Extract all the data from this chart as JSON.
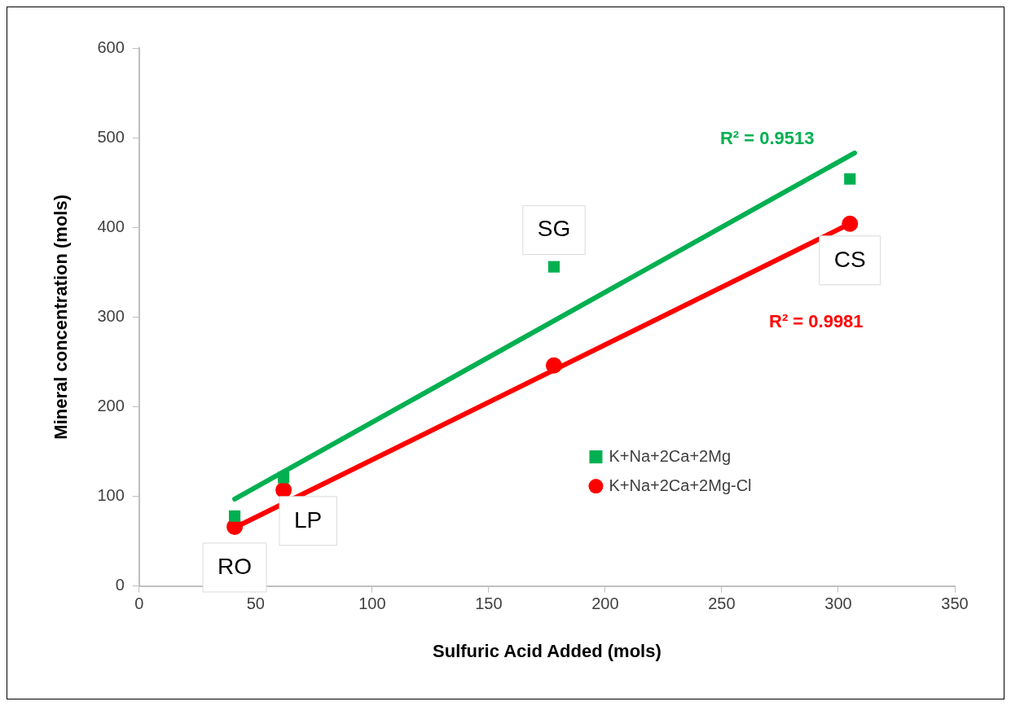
{
  "chart_data": {
    "type": "scatter",
    "xlabel": "Sulfuric Acid Added (mols)",
    "ylabel": "Mineral concentration (mols)",
    "xlim": [
      0,
      350
    ],
    "xticks": [
      0,
      50,
      100,
      150,
      200,
      250,
      300,
      350
    ],
    "ylim": [
      0,
      600
    ],
    "yticks": [
      0,
      100,
      200,
      300,
      400,
      500,
      600
    ],
    "grid": false,
    "legend": "bottom right",
    "series": [
      {
        "name": "K+Na+2Ca+2Mg",
        "type": "scatter",
        "marker": "square",
        "color": "#00b050",
        "x": [
          41,
          62,
          178,
          305
        ],
        "values": [
          78,
          121,
          356,
          454
        ]
      },
      {
        "name": "K+Na+2Ca+2Mg-Cl",
        "type": "scatter",
        "marker": "circle",
        "color": "#ff0000",
        "x": [
          41,
          62,
          178,
          305
        ],
        "values": [
          66,
          107,
          246,
          404
        ]
      },
      {
        "type": "line",
        "marker": "none",
        "color": "#00b050",
        "x": [
          41,
          307
        ],
        "values": [
          97,
          483
        ]
      },
      {
        "type": "line",
        "marker": "none",
        "color": "#ff0000",
        "x": [
          41,
          305
        ],
        "values": [
          65,
          404
        ]
      }
    ],
    "annotations": [
      "R² = 0.9513",
      "R² = 0.9981",
      {
        "text": "RO",
        "x": 41,
        "y": 66
      },
      {
        "text": "LP",
        "x": 62,
        "y": 107
      },
      {
        "text": "SG",
        "x": 178,
        "y": 356
      },
      {
        "text": "CS",
        "x": 305,
        "y": 404
      }
    ]
  }
}
